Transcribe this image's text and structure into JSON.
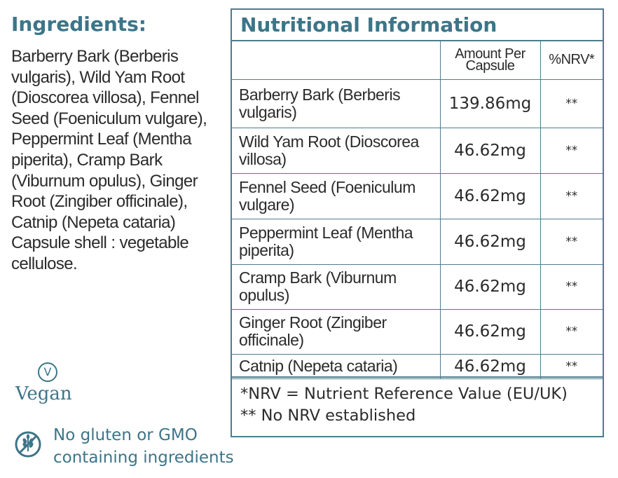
{
  "ingredients": {
    "heading": "Ingredients:",
    "text": "Barberry Bark (Berberis vulgaris), Wild Yam Root (Dioscorea villosa), Fennel Seed (Foeniculum vulgare), Peppermint Leaf (Mentha piperita), Cramp Bark (Viburnum opulus), Ginger Root (Zingiber officinale), Catnip (Nepeta cataria) Capsule shell : vegetable cellulose."
  },
  "badges": {
    "vegan_symbol": "V",
    "vegan_label": "Vegan",
    "gmo_icon": "grain-crossed-icon",
    "gmo_line1": "No gluten or GMO",
    "gmo_line2": "containing ingredients"
  },
  "nutrition": {
    "title": "Nutritional Information",
    "col_amount_line1": "Amount Per",
    "col_amount_line2": "Capsule",
    "col_nrv": "%NRV*",
    "rows": [
      {
        "name_line1": "Barberry Bark (Berberis",
        "name_line2": "vulgaris)",
        "amount": "139.86mg",
        "nrv": "**"
      },
      {
        "name_line1": "Wild Yam Root (Dioscorea",
        "name_line2": "villosa)",
        "amount": "46.62mg",
        "nrv": "**"
      },
      {
        "name_line1": "Fennel Seed (Foeniculum",
        "name_line2": "vulgare)",
        "amount": "46.62mg",
        "nrv": "**"
      },
      {
        "name_line1": "Peppermint Leaf (Mentha",
        "name_line2": "piperita)",
        "amount": "46.62mg",
        "nrv": "**"
      },
      {
        "name_line1": "Cramp Bark (Viburnum",
        "name_line2": "opulus)",
        "amount": "46.62mg",
        "nrv": "**"
      },
      {
        "name_line1": "Ginger Root (Zingiber",
        "name_line2": "officinale)",
        "amount": "46.62mg",
        "nrv": "**"
      },
      {
        "name_line1": "Catnip (Nepeta cataria)",
        "name_line2": "",
        "amount": "46.62mg",
        "nrv": "**"
      }
    ],
    "footnote1": "*NRV = Nutrient Reference Value (EU/UK)",
    "footnote2": "** No NRV established"
  },
  "colors": {
    "accent": "#3d7588",
    "border": "#4d7c8e",
    "text": "#2b2b2b"
  }
}
